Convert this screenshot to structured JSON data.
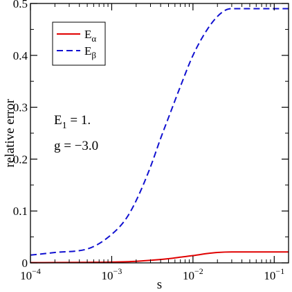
{
  "chart_data": {
    "type": "line",
    "xlabel": "s",
    "ylabel": "relative error",
    "xscale": "log",
    "xlim": [
      0.0001,
      0.15
    ],
    "ylim": [
      0,
      0.5
    ],
    "grid": false,
    "legend_position": "top-left",
    "yticks": [
      {
        "value": 0,
        "label": "0"
      },
      {
        "value": 0.1,
        "label": "0.1"
      },
      {
        "value": 0.2,
        "label": "0.2"
      },
      {
        "value": 0.3,
        "label": "0.3"
      },
      {
        "value": 0.4,
        "label": "0.4"
      },
      {
        "value": 0.5,
        "label": "0.5"
      }
    ],
    "xticks": [
      {
        "value": 0.0001,
        "base": "10",
        "exp": "−4"
      },
      {
        "value": 0.001,
        "base": "10",
        "exp": "−3"
      },
      {
        "value": 0.01,
        "base": "10",
        "exp": "−2"
      },
      {
        "value": 0.1,
        "base": "10",
        "exp": "−1"
      }
    ],
    "series": [
      {
        "name": "E",
        "subscript": "α",
        "color": "#e00000",
        "dash": "solid",
        "x": [
          0.0001,
          0.0002,
          0.0005,
          0.001,
          0.002,
          0.003,
          0.005,
          0.007,
          0.01,
          0.015,
          0.02,
          0.03,
          0.05,
          0.1,
          0.15
        ],
        "y": [
          0.0005,
          0.0006,
          0.001,
          0.0015,
          0.003,
          0.005,
          0.008,
          0.011,
          0.014,
          0.018,
          0.02,
          0.021,
          0.021,
          0.021,
          0.021
        ]
      },
      {
        "name": "E",
        "subscript": "β",
        "color": "#1010d0",
        "dash": "dashed",
        "x": [
          0.0001,
          0.0002,
          0.00055,
          0.001,
          0.0015,
          0.002,
          0.003,
          0.004,
          0.005,
          0.007,
          0.01,
          0.015,
          0.02,
          0.025,
          0.03,
          0.05,
          0.1,
          0.15
        ],
        "y": [
          0.015,
          0.02,
          0.029,
          0.055,
          0.085,
          0.12,
          0.185,
          0.24,
          0.28,
          0.34,
          0.4,
          0.45,
          0.475,
          0.487,
          0.49,
          0.49,
          0.49,
          0.49
        ]
      }
    ],
    "annotations": [
      {
        "main": "E",
        "sub": "1",
        "rest": " = 1."
      },
      {
        "main": "g = −3.0",
        "sub": "",
        "rest": ""
      }
    ]
  }
}
